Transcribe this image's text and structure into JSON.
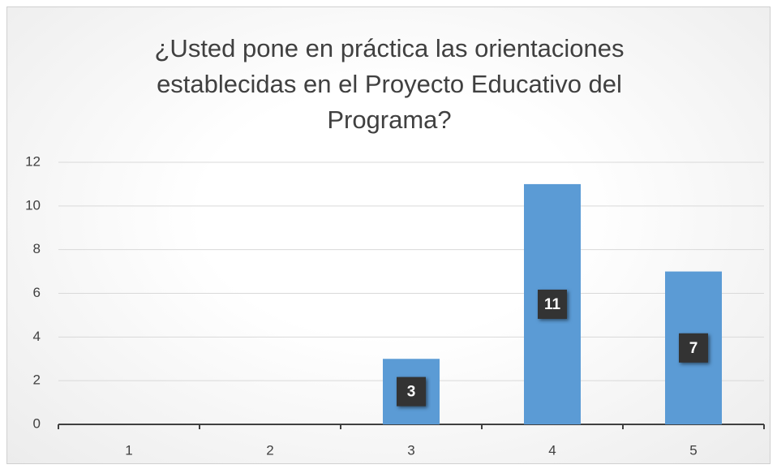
{
  "chart_data": {
    "type": "bar",
    "title": "¿Usted pone en práctica las orientaciones establecidas en el Proyecto Educativo del Programa?",
    "categories": [
      "1",
      "2",
      "3",
      "4",
      "5"
    ],
    "values": [
      null,
      null,
      3,
      11,
      7
    ],
    "color": "#5b9bd5",
    "ylim": [
      0,
      12
    ],
    "yticks": [
      0,
      2,
      4,
      6,
      8,
      10,
      12
    ],
    "grid": true
  }
}
